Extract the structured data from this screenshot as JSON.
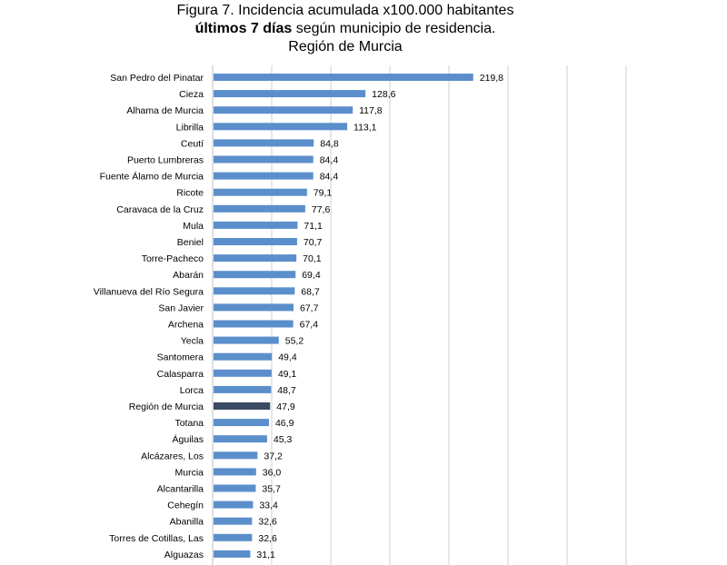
{
  "title": {
    "line1": "Figura 7. Incidencia acumulada x100.000 habitantes",
    "line2_bold": "últimos 7 días",
    "line2_rest": " según municipio de residencia.",
    "line3": "Región de Murcia"
  },
  "colors": {
    "bar": "#5b8fcb",
    "highlight": "#3a4a63",
    "grid": "#d0d0d0"
  },
  "chart_data": {
    "type": "bar",
    "orientation": "horizontal",
    "grid": true,
    "xlim": [
      0,
      350
    ],
    "categories": [
      "San Pedro del Pinatar",
      "Cieza",
      "Alhama de Murcia",
      "Librilla",
      "Ceutí",
      "Puerto Lumbreras",
      "Fuente Álamo de Murcia",
      "Ricote",
      "Caravaca de la Cruz",
      "Mula",
      "Beniel",
      "Torre-Pacheco",
      "Abarán",
      "Villanueva del Río Segura",
      "San Javier",
      "Archena",
      "Yecla",
      "Santomera",
      "Calasparra",
      "Lorca",
      "Región de Murcia",
      "Totana",
      "Águilas",
      "Alcázares, Los",
      "Murcia",
      "Alcantarilla",
      "Cehegín",
      "Abanilla",
      "Torres de Cotillas, Las",
      "Alguazas"
    ],
    "values": [
      219.8,
      128.6,
      117.8,
      113.1,
      84.8,
      84.4,
      84.4,
      79.1,
      77.6,
      71.1,
      70.7,
      70.1,
      69.4,
      68.7,
      67.7,
      67.4,
      55.2,
      49.4,
      49.1,
      48.7,
      47.9,
      46.9,
      45.3,
      37.2,
      36.0,
      35.7,
      33.4,
      32.6,
      32.6,
      31.1
    ],
    "value_labels": [
      "219,8",
      "128,6",
      "117,8",
      "113,1",
      "84,8",
      "84,4",
      "84,4",
      "79,1",
      "77,6",
      "71,1",
      "70,7",
      "70,1",
      "69,4",
      "68,7",
      "67,7",
      "67,4",
      "55,2",
      "49,4",
      "49,1",
      "48,7",
      "47,9",
      "46,9",
      "45,3",
      "37,2",
      "36,0",
      "35,7",
      "33,4",
      "32,6",
      "32,6",
      "31,1"
    ],
    "highlight_category": "Región de Murcia"
  }
}
